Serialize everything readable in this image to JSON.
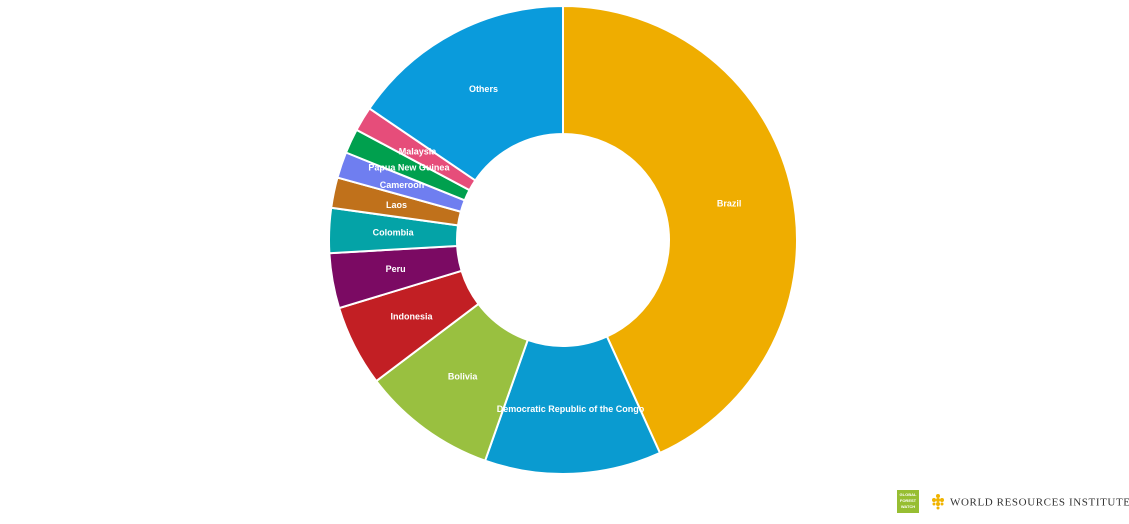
{
  "chart_data": {
    "type": "donut",
    "categories": [
      "Brazil",
      "Democratic Republic of the Congo",
      "Bolivia",
      "Indonesia",
      "Peru",
      "Colombia",
      "Laos",
      "Cameroon",
      "Papua New Guinea",
      "Malaysia",
      "Others"
    ],
    "values": [
      43.2,
      12.2,
      9.3,
      5.6,
      3.8,
      3.1,
      2.1,
      1.8,
      1.7,
      1.7,
      15.5
    ],
    "colors": [
      "#efad00",
      "#0a9bd0",
      "#99c040",
      "#c21f24",
      "#7b0a63",
      "#04a3a7",
      "#c0711b",
      "#6f7ef0",
      "#00a04e",
      "#e64d7a",
      "#0a9bdc"
    ]
  },
  "footer": {
    "gfw_logo": "GLOBAL FOREST WATCH",
    "wri_logo": "WORLD RESOURCES INSTITUTE"
  }
}
